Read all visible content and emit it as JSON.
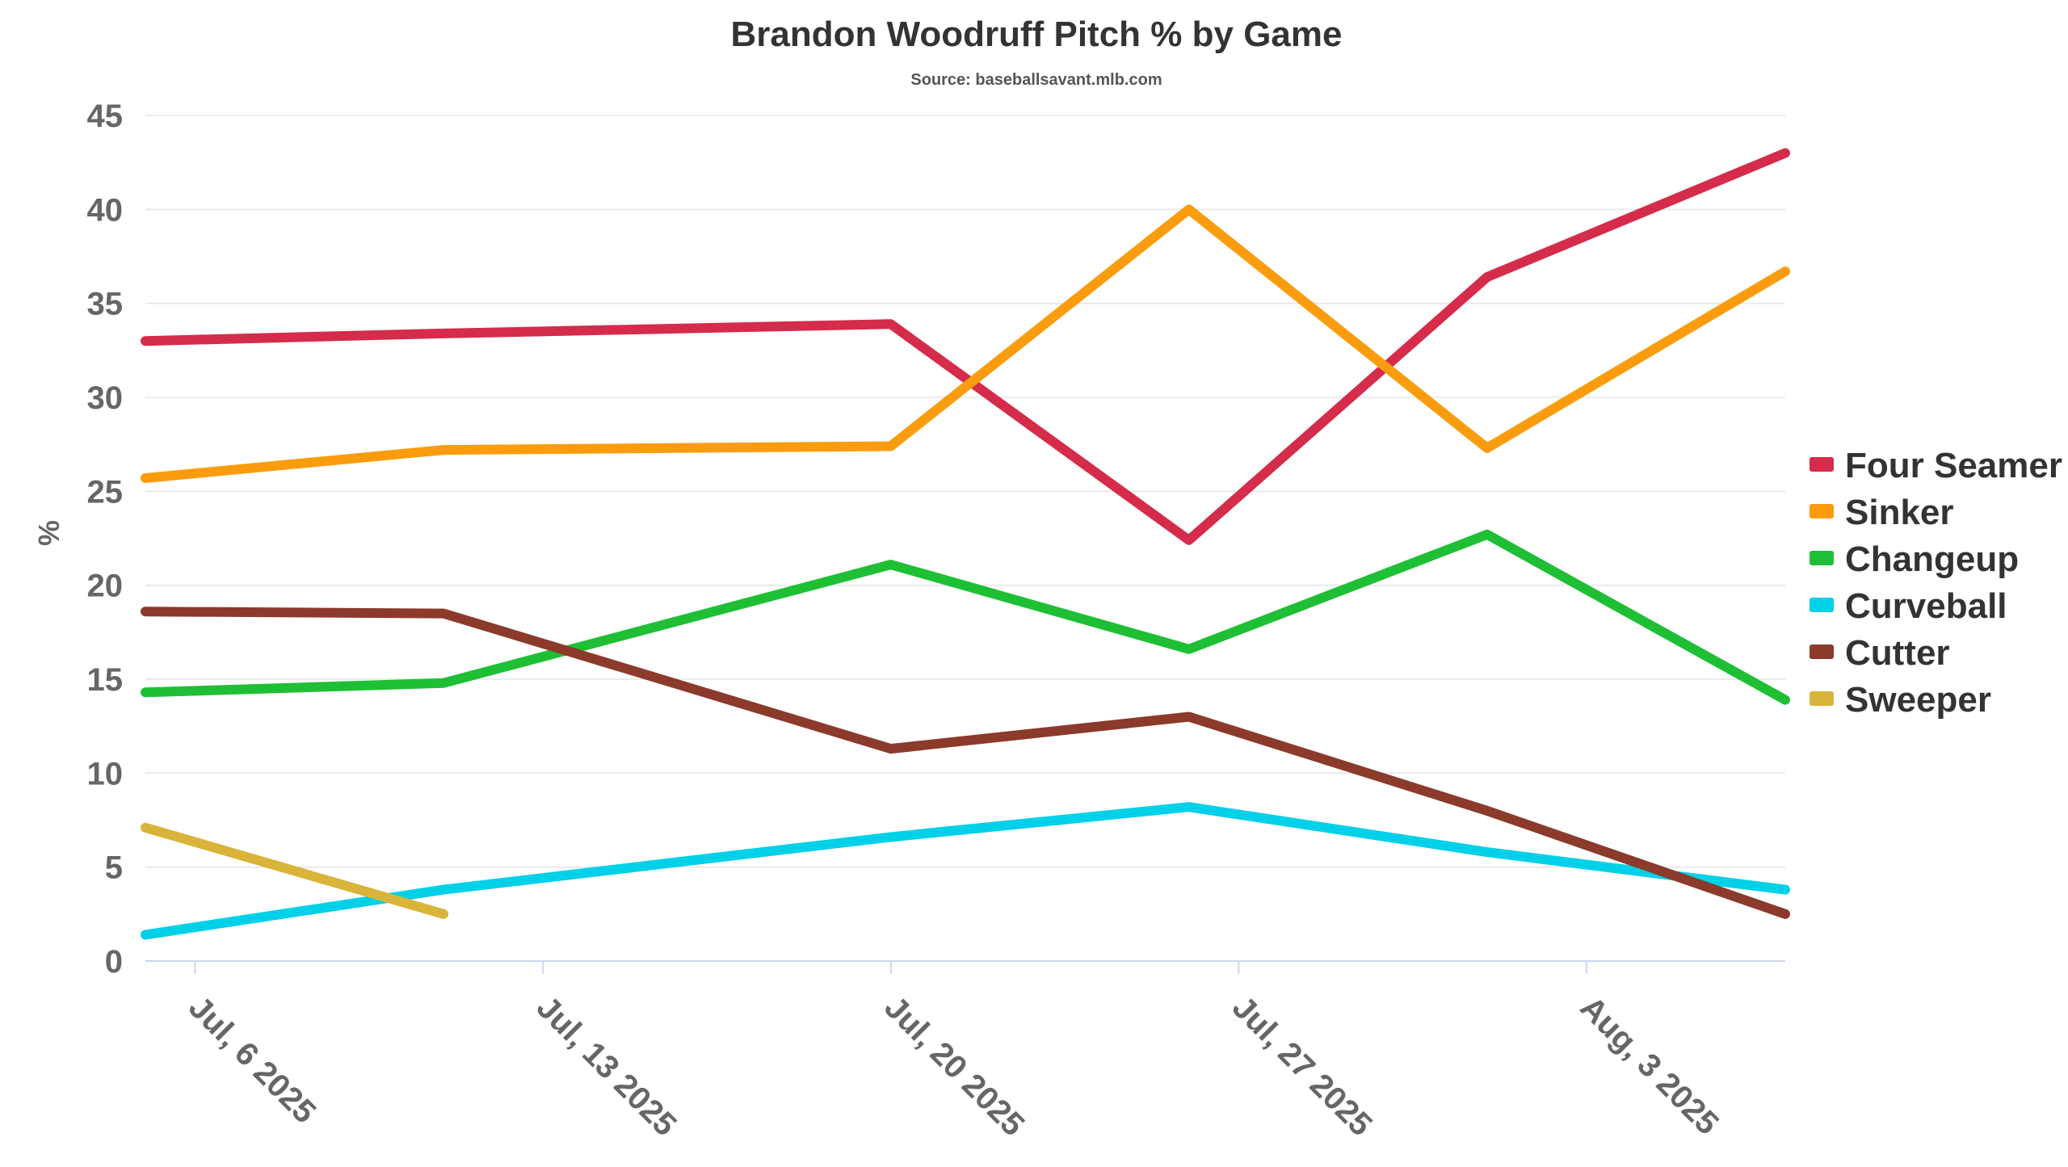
{
  "chart_data": {
    "type": "line",
    "title": "Brandon Woodruff Pitch % by Game",
    "subtitle": "Source: baseballsavant.mlb.com",
    "ylabel": "%",
    "xlabel": "",
    "ylim": [
      0,
      45
    ],
    "y_ticks": [
      "0",
      "5",
      "10",
      "15",
      "20",
      "25",
      "30",
      "35",
      "40",
      "45"
    ],
    "xlim": [
      "2025-07-05",
      "2025-08-07"
    ],
    "x_ticks": [
      {
        "date": "2025-07-06",
        "label": "Jul, 6 2025"
      },
      {
        "date": "2025-07-13",
        "label": "Jul, 13 2025"
      },
      {
        "date": "2025-07-20",
        "label": "Jul, 20 2025"
      },
      {
        "date": "2025-07-27",
        "label": "Jul, 27 2025"
      },
      {
        "date": "2025-08-03",
        "label": "Aug, 3 2025"
      }
    ],
    "x": [
      "2025-07-05",
      "2025-07-11",
      "2025-07-20",
      "2025-07-26",
      "2025-08-01",
      "2025-08-07"
    ],
    "grid": true,
    "legend_position": "right",
    "series": [
      {
        "name": "Four Seamer",
        "color": "#d42c4a",
        "values": [
          33.0,
          33.4,
          33.9,
          22.4,
          36.4,
          43.0
        ]
      },
      {
        "name": "Sinker",
        "color": "#fa9c0d",
        "values": [
          25.7,
          27.2,
          27.4,
          40.0,
          27.3,
          36.7
        ]
      },
      {
        "name": "Changeup",
        "color": "#1fbf35",
        "values": [
          14.3,
          14.8,
          21.1,
          16.6,
          22.7,
          13.9
        ]
      },
      {
        "name": "Curveball",
        "color": "#00d0e8",
        "values": [
          1.4,
          3.8,
          6.6,
          8.2,
          5.8,
          3.8
        ]
      },
      {
        "name": "Cutter",
        "color": "#8b3a2b",
        "values": [
          18.6,
          18.5,
          11.3,
          13.0,
          8.0,
          2.5
        ]
      },
      {
        "name": "Sweeper",
        "color": "#d9b43a",
        "values": [
          7.1,
          2.5,
          null,
          null,
          null,
          null
        ]
      }
    ]
  }
}
